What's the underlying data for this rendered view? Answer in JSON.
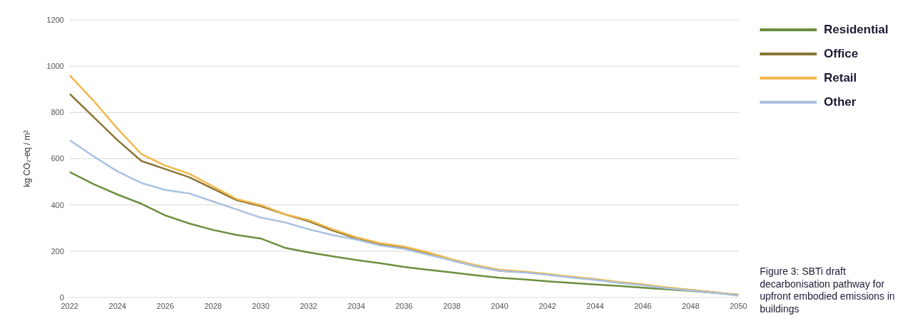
{
  "chart_data": {
    "type": "line",
    "ylabel": "kg CO₂-eq / m²",
    "x": [
      2022,
      2023,
      2024,
      2025,
      2026,
      2027,
      2028,
      2029,
      2030,
      2031,
      2032,
      2033,
      2034,
      2035,
      2036,
      2037,
      2038,
      2039,
      2040,
      2041,
      2042,
      2043,
      2044,
      2045,
      2046,
      2047,
      2048,
      2049,
      2050
    ],
    "series": [
      {
        "name": "Residential",
        "color": "#6b8e3e",
        "values": [
          542,
          490,
          445,
          405,
          355,
          320,
          292,
          270,
          255,
          215,
          195,
          178,
          162,
          148,
          132,
          120,
          108,
          96,
          85,
          78,
          70,
          63,
          56,
          50,
          42,
          35,
          28,
          20,
          12
        ]
      },
      {
        "name": "Office",
        "color": "#8b7535",
        "values": [
          880,
          780,
          680,
          590,
          555,
          520,
          470,
          420,
          395,
          360,
          330,
          290,
          255,
          230,
          215,
          190,
          160,
          135,
          115,
          110,
          100,
          88,
          78,
          65,
          55,
          42,
          32,
          22,
          10
        ]
      },
      {
        "name": "Retail",
        "color": "#f2b84b",
        "values": [
          960,
          850,
          730,
          620,
          570,
          535,
          480,
          425,
          400,
          360,
          335,
          295,
          260,
          235,
          220,
          195,
          165,
          140,
          120,
          112,
          102,
          90,
          80,
          67,
          57,
          44,
          33,
          22,
          10
        ]
      },
      {
        "name": "Other",
        "color": "#a9c1e0",
        "values": [
          680,
          610,
          545,
          495,
          465,
          450,
          415,
          380,
          345,
          325,
          295,
          270,
          250,
          225,
          210,
          185,
          160,
          135,
          115,
          108,
          98,
          86,
          76,
          63,
          53,
          40,
          30,
          20,
          8
        ]
      }
    ],
    "xlim": [
      2022,
      2050
    ],
    "xticks": [
      2022,
      2024,
      2026,
      2028,
      2030,
      2032,
      2034,
      2036,
      2038,
      2040,
      2042,
      2044,
      2046,
      2048,
      2050
    ],
    "ylim": [
      0,
      1200
    ],
    "yticks": [
      0,
      200,
      400,
      600,
      800,
      1000,
      1200
    ],
    "grid": "y",
    "legend": "top right",
    "marker": "none",
    "line_style": "solid",
    "annotations": [
      "Figure 3: SBTi draft decarbonisation pathway for upfront embodied emissions in buildings"
    ]
  }
}
